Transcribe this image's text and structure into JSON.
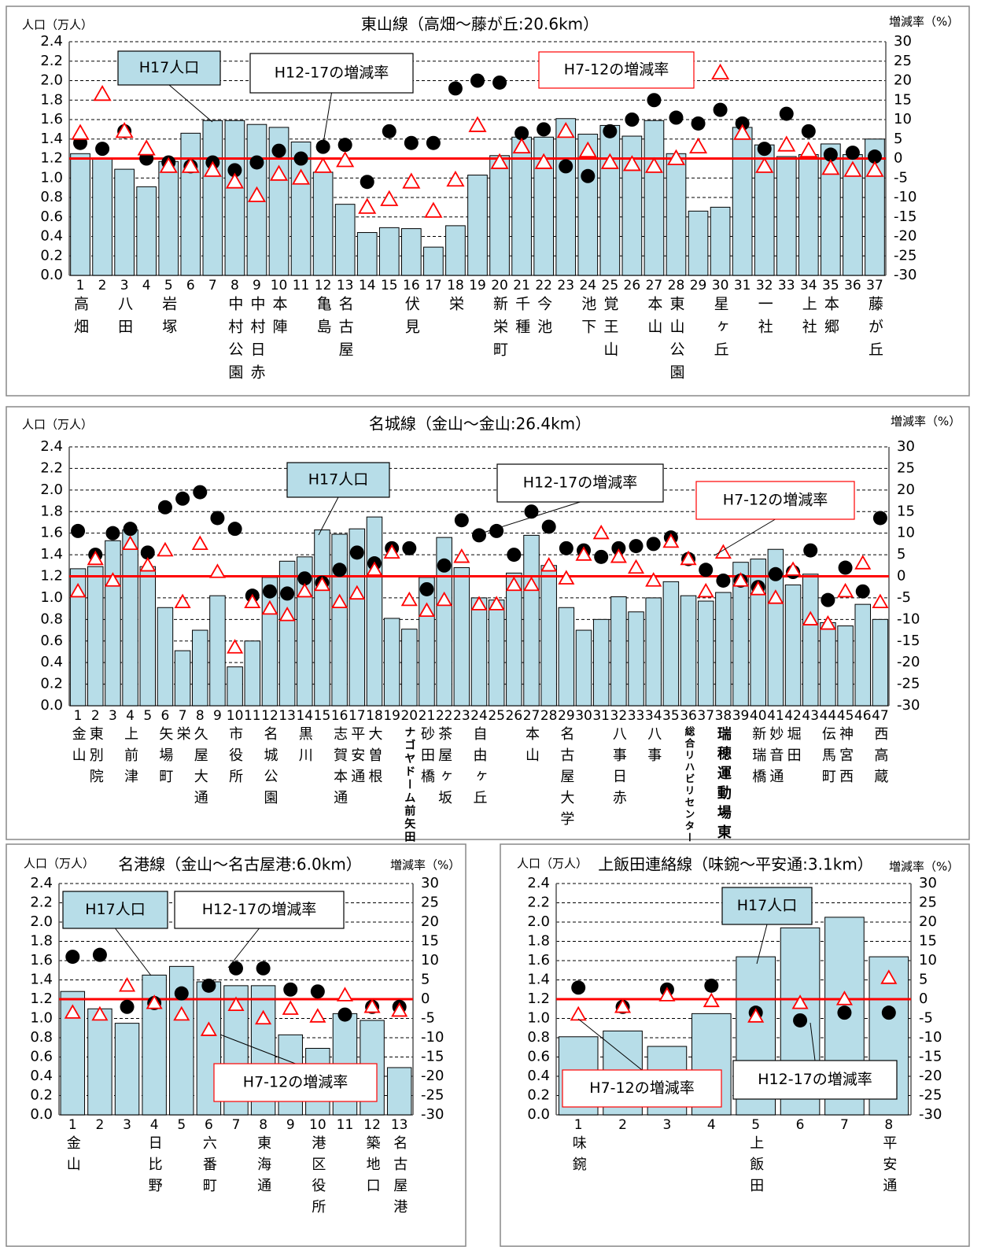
{
  "chart_data": [
    {
      "type": "bar",
      "title": "東山線（高畑～藤が丘:20.6km）",
      "y_label": "人口（万人）",
      "y2_label": "増減率（%）",
      "categories": [
        1,
        2,
        3,
        4,
        5,
        6,
        7,
        8,
        9,
        10,
        11,
        12,
        13,
        14,
        15,
        16,
        17,
        18,
        19,
        20,
        21,
        22,
        23,
        24,
        25,
        26,
        27,
        28,
        29,
        30,
        31,
        32,
        33,
        34,
        35,
        36,
        37
      ],
      "x_labels": [
        "高畑",
        null,
        "八田",
        null,
        "岩塚",
        null,
        null,
        "中村公園",
        "中村日赤",
        "本陣",
        null,
        "亀島",
        "名古屋",
        null,
        null,
        "伏見",
        null,
        "栄",
        null,
        "新栄町",
        "千種",
        "今池",
        null,
        "池下",
        "覚王山",
        null,
        "本山",
        "東山公園",
        null,
        "星ヶ丘",
        null,
        "一社",
        null,
        "上社",
        "本郷",
        null,
        "藤が丘"
      ],
      "series": [
        {
          "name": "H17人口",
          "type": "bar",
          "color": "#b7dde8",
          "values": [
            1.25,
            1.2,
            1.09,
            0.91,
            1.17,
            1.46,
            1.59,
            1.59,
            1.55,
            1.52,
            1.37,
            1.06,
            0.73,
            0.44,
            0.49,
            0.48,
            0.29,
            0.51,
            1.03,
            1.23,
            1.42,
            1.42,
            1.61,
            1.45,
            1.54,
            1.43,
            1.59,
            1.25,
            0.66,
            0.7,
            1.52,
            1.34,
            1.22,
            1.24,
            1.35,
            1.24,
            1.4
          ]
        },
        {
          "name": "H12-17の増減率",
          "type": "scatter",
          "marker": "circle",
          "axis": "y2",
          "color": "#000000",
          "values": [
            4,
            2.5,
            7,
            0,
            -1,
            -2,
            -1,
            -3,
            -1,
            2,
            0,
            3,
            3.5,
            -6,
            7,
            4,
            4,
            18,
            20,
            19.5,
            6.5,
            7.5,
            -2,
            -4.5,
            7,
            10,
            15,
            10.5,
            9,
            12.5,
            9,
            2.5,
            11.5,
            7,
            1,
            1.5,
            0.5
          ]
        },
        {
          "name": "H7-12の増減率",
          "type": "scatter",
          "marker": "triangle",
          "axis": "y2",
          "color": "#ff0000",
          "values": [
            6.5,
            16.5,
            7,
            2.5,
            -2,
            -2,
            -3,
            -6,
            -9.5,
            -4,
            -5,
            -2,
            -0.5,
            -12.5,
            -10.5,
            -6,
            -13.5,
            -5.5,
            8.5,
            -1,
            3,
            -1,
            7,
            2,
            -1,
            -1.5,
            -2,
            0,
            3,
            22,
            6.5,
            -2,
            3.5,
            2,
            -2.5,
            -3,
            -3
          ]
        }
      ],
      "reference_line": {
        "axis": "y2",
        "value": 0,
        "color": "#ff0000"
      },
      "ylim": [
        0,
        2.4
      ],
      "yticks": [
        {
          "value": 0,
          "label": "0.0"
        },
        0.2,
        0.4,
        0.6,
        0.8,
        {
          "value": 1,
          "label": "1.0"
        },
        1.2,
        1.4,
        1.6,
        1.8,
        {
          "value": 2,
          "label": "2.0"
        },
        2.2,
        2.4
      ],
      "y2lim": [
        -30,
        30
      ],
      "y2ticks": [
        -30,
        -25,
        -20,
        -15,
        -10,
        -5,
        0,
        5,
        10,
        15,
        20,
        25,
        30
      ],
      "grid": true
    },
    {
      "type": "bar",
      "title": "名城線（金山～金山:26.4km）",
      "y_label": "人口（万人）",
      "y2_label": "増減率（%）",
      "categories": [
        1,
        2,
        3,
        4,
        5,
        6,
        7,
        8,
        9,
        10,
        11,
        12,
        13,
        14,
        15,
        16,
        17,
        18,
        19,
        20,
        21,
        22,
        23,
        24,
        25,
        26,
        27,
        28,
        29,
        30,
        31,
        32,
        33,
        34,
        35,
        36,
        37,
        38,
        39,
        40,
        41,
        42,
        43,
        44,
        45,
        46,
        47
      ],
      "x_labels": [
        "金山",
        "東別院",
        null,
        "上前津",
        null,
        "矢場町",
        "栄",
        "久屋大通",
        null,
        "市役所",
        null,
        "名城公園",
        null,
        "黒川",
        null,
        "志賀本通",
        "平安通",
        "大曽根",
        null,
        "ナゴヤドーム前矢田",
        "砂田橋",
        "茶屋ヶ坂",
        null,
        "自由ヶ丘",
        null,
        null,
        "本山",
        null,
        "名古屋大学",
        null,
        null,
        "八事日赤",
        null,
        "八事",
        null,
        "総合リハビリセンター",
        null,
        "瑞穂運動場東",
        null,
        "新瑞橋",
        "妙音通",
        "堀田",
        null,
        "伝馬町",
        "神宮西",
        null,
        "西高蔵"
      ],
      "series": [
        {
          "name": "H17人口",
          "type": "bar",
          "color": "#b7dde8",
          "values": [
            1.27,
            1.29,
            1.53,
            1.63,
            1.29,
            0.91,
            0.51,
            0.7,
            1.02,
            0.36,
            0.6,
            1.19,
            1.34,
            1.38,
            1.63,
            1.59,
            1.64,
            1.75,
            0.81,
            0.71,
            1.19,
            1.56,
            1.28,
            1,
            0.98,
            1.23,
            1.58,
            1.3,
            0.91,
            0.7,
            0.8,
            1.01,
            0.87,
            1,
            1.15,
            1.02,
            0.97,
            1.05,
            1.33,
            1.36,
            1.45,
            1.12,
            1.22,
            0.77,
            0.74,
            0.94,
            0.8
          ]
        },
        {
          "name": "H12-17の増減率",
          "type": "scatter",
          "marker": "circle",
          "axis": "y2",
          "color": "#000000",
          "values": [
            10.5,
            5,
            10,
            11,
            5.5,
            16,
            18,
            19.5,
            13.5,
            11,
            -4.5,
            -3.5,
            -4,
            -0.5,
            -1.5,
            1.5,
            5.5,
            3,
            6.5,
            6.5,
            -3,
            2.5,
            13,
            9.5,
            10.5,
            5,
            15,
            11.5,
            6.5,
            6,
            4.5,
            6.5,
            7,
            7.5,
            9,
            4,
            1.5,
            -1,
            -1,
            -2.5,
            0.5,
            1,
            6,
            -5.5,
            2,
            -3.5,
            13.5
          ]
        },
        {
          "name": "H7-12の増減率",
          "type": "scatter",
          "marker": "triangle",
          "axis": "y2",
          "color": "#ff0000",
          "values": [
            -3.5,
            4,
            -1,
            7.5,
            2.5,
            6,
            -6,
            7.5,
            1,
            -16.5,
            -6,
            -7.5,
            -9,
            -3.5,
            -2,
            -6,
            -4,
            1.5,
            5.5,
            -5.5,
            -8,
            -5.5,
            4.5,
            -6.5,
            -6.5,
            -2,
            -2,
            2.5,
            -0.5,
            5,
            10,
            4.5,
            2,
            -1,
            8,
            4,
            -3.5,
            5.5,
            -1,
            -3,
            -5,
            1.5,
            -10,
            -11,
            -3.5,
            3,
            -6
          ]
        }
      ],
      "reference_line": {
        "axis": "y2",
        "value": 0,
        "color": "#ff0000"
      },
      "ylim": [
        0,
        2.4
      ],
      "yticks": [
        {
          "value": 0,
          "label": "0.0"
        },
        0.2,
        0.4,
        0.6,
        0.8,
        {
          "value": 1,
          "label": "1.0"
        },
        1.2,
        1.4,
        1.6,
        1.8,
        {
          "value": 2,
          "label": "2.0"
        },
        2.2,
        2.4
      ],
      "y2lim": [
        -30,
        30
      ],
      "y2ticks": [
        -30,
        -25,
        -20,
        -15,
        -10,
        -5,
        0,
        5,
        10,
        15,
        20,
        25,
        30
      ],
      "grid": true
    },
    {
      "type": "bar",
      "title": "名港線（金山～名古屋港:6.0km）",
      "y_label": "人口（万人）",
      "y2_label": "増減率（%）",
      "categories": [
        1,
        2,
        3,
        4,
        5,
        6,
        7,
        8,
        9,
        10,
        11,
        12,
        13
      ],
      "x_labels": [
        "金山",
        null,
        null,
        "日比野",
        null,
        "六番町",
        null,
        "東海通",
        null,
        "港区役所",
        null,
        "築地口",
        "名古屋港"
      ],
      "series": [
        {
          "name": "H17人口",
          "type": "bar",
          "color": "#b7dde8",
          "values": [
            1.28,
            1.1,
            0.95,
            1.45,
            1.54,
            1.38,
            1.34,
            1.34,
            0.83,
            0.69,
            1.05,
            0.98,
            0.49
          ]
        },
        {
          "name": "H12-17の増減率",
          "type": "scatter",
          "marker": "circle",
          "axis": "y2",
          "color": "#000000",
          "values": [
            11,
            11.5,
            -2,
            -1,
            1.5,
            3.5,
            8,
            8,
            2.5,
            2,
            -4,
            -2,
            -2
          ]
        },
        {
          "name": "H7-12の増減率",
          "type": "scatter",
          "marker": "triangle",
          "axis": "y2",
          "color": "#ff0000",
          "values": [
            -3.5,
            -4,
            3.5,
            -1,
            -4,
            -8,
            -1.5,
            -5,
            -2.5,
            -4.5,
            1,
            -2,
            -3
          ]
        }
      ],
      "reference_line": {
        "axis": "y2",
        "value": 0,
        "color": "#ff0000"
      },
      "ylim": [
        0,
        2.4
      ],
      "yticks": [
        {
          "value": 0,
          "label": "0.0"
        },
        0.2,
        0.4,
        0.6,
        0.8,
        {
          "value": 1,
          "label": "1.0"
        },
        1.2,
        1.4,
        1.6,
        1.8,
        {
          "value": 2,
          "label": "2.0"
        },
        2.2,
        2.4
      ],
      "y2lim": [
        -30,
        30
      ],
      "y2ticks": [
        -30,
        -25,
        -20,
        -15,
        -10,
        -5,
        0,
        5,
        10,
        15,
        20,
        25,
        30
      ],
      "grid": true
    },
    {
      "type": "bar",
      "title": "上飯田連絡線（味鋺～平安通:3.1km）",
      "y_label": "人口（万人）",
      "y2_label": "増減率（%）",
      "categories": [
        1,
        2,
        3,
        4,
        5,
        6,
        7,
        8
      ],
      "x_labels": [
        "味鋺",
        null,
        null,
        null,
        "上飯田",
        null,
        null,
        "平安通"
      ],
      "series": [
        {
          "name": "H17人口",
          "type": "bar",
          "color": "#b7dde8",
          "values": [
            0.81,
            0.87,
            0.71,
            1.05,
            1.64,
            1.94,
            2.05,
            1.64
          ]
        },
        {
          "name": "H12-17の増減率",
          "type": "scatter",
          "marker": "circle",
          "axis": "y2",
          "color": "#000000",
          "values": [
            3,
            -2,
            2.5,
            3.5,
            -3.5,
            -5.5,
            -3.5,
            -3.5
          ]
        },
        {
          "name": "H7-12の増減率",
          "type": "scatter",
          "marker": "triangle",
          "axis": "y2",
          "color": "#ff0000",
          "values": [
            -4,
            -2,
            1,
            -0.5,
            -4.5,
            -1,
            0,
            5.5
          ]
        }
      ],
      "reference_line": {
        "axis": "y2",
        "value": 0,
        "color": "#ff0000"
      },
      "ylim": [
        0,
        2.4
      ],
      "yticks": [
        {
          "value": 0,
          "label": "0.0"
        },
        0.2,
        0.4,
        0.6,
        0.8,
        {
          "value": 1,
          "label": "1.0"
        },
        1.2,
        1.4,
        1.6,
        1.8,
        {
          "value": 2,
          "label": "2.0"
        },
        2.2,
        2.4
      ],
      "y2lim": [
        -30,
        30
      ],
      "y2ticks": [
        -30,
        -25,
        -20,
        -15,
        -10,
        -5,
        0,
        5,
        10,
        15,
        20,
        25,
        30
      ],
      "grid": true
    }
  ]
}
